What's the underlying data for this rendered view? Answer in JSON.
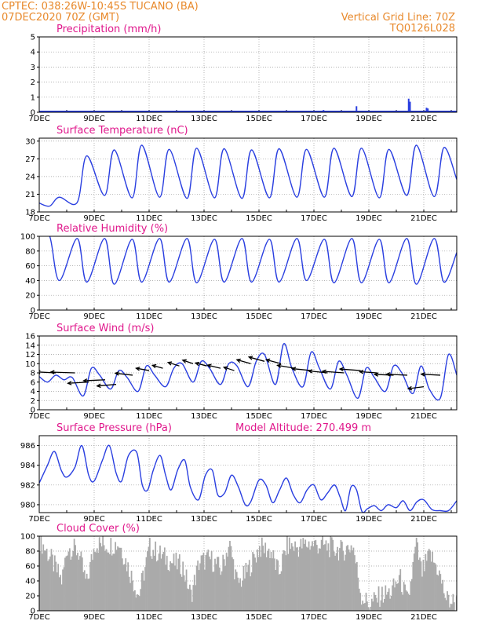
{
  "header": {
    "line1": "CPTEC:   038:26W-10:45S   TUCANO (BA)",
    "line2": "07DEC2020  70Z (GMT)",
    "right1": "Vertical Grid Line: 70Z",
    "right2": "TQ0126L028"
  },
  "colors": {
    "header": "#e8892b",
    "title": "#e0188c",
    "line": "#2a3fe0",
    "cloud": "#aaaaaa",
    "wind": "#000000"
  },
  "chart_data": [
    {
      "type": "bar",
      "title": "Precipitation (mm/h)",
      "ylim": [
        0,
        5
      ],
      "yticks": [
        "0",
        "1",
        "2",
        "3",
        "4",
        "5"
      ],
      "xticks": [
        "7DEC",
        "9DEC",
        "11DEC",
        "13DEC",
        "15DEC",
        "17DEC",
        "19DEC",
        "21DEC"
      ],
      "x_start_day": 7,
      "x_end_day": 22.2,
      "bars": [
        {
          "day": 17.35,
          "value": 0.15
        },
        {
          "day": 18.55,
          "value": 0.4
        },
        {
          "day": 20.45,
          "value": 0.9
        },
        {
          "day": 20.5,
          "value": 0.7
        },
        {
          "day": 21.1,
          "value": 0.3
        },
        {
          "day": 21.15,
          "value": 0.25
        }
      ],
      "baseline_noise": 0.05
    },
    {
      "type": "line",
      "title": "Surface Temperature (nC)",
      "ylim": [
        18,
        30.5
      ],
      "yticks": [
        "18",
        "21",
        "24",
        "27",
        "30"
      ],
      "xticks": [
        "7DEC",
        "9DEC",
        "11DEC",
        "13DEC",
        "15DEC",
        "17DEC",
        "19DEC",
        "21DEC"
      ],
      "x_start_day": 7,
      "x_end_day": 22.2,
      "daily_max": [
        20.5,
        27.5,
        28.5,
        29.3,
        28.6,
        28.8,
        28.7,
        28.5,
        28.7,
        28.6,
        28.8,
        28.8,
        28.6,
        29.3,
        28.9,
        29.0
      ],
      "daily_min": [
        19.0,
        19.6,
        20.8,
        20.4,
        20.5,
        20.3,
        20.4,
        20.3,
        20.4,
        20.5,
        20.5,
        20.6,
        20.4,
        20.8,
        20.6,
        20.5
      ],
      "max_hour": 0.73,
      "min_hour": 0.38,
      "start_value": 19.5,
      "end_value": 23.5
    },
    {
      "type": "line",
      "title": "Relative Humidity (%)",
      "ylim": [
        0,
        100
      ],
      "yticks": [
        "0",
        "20",
        "40",
        "60",
        "80",
        "100"
      ],
      "xticks": [
        "7DEC",
        "9DEC",
        "11DEC",
        "13DEC",
        "15DEC",
        "17DEC",
        "19DEC",
        "21DEC"
      ],
      "x_start_day": 7,
      "x_end_day": 22.2,
      "daily_max": [
        100,
        97,
        97,
        96,
        97,
        97,
        96,
        97,
        96,
        97,
        96,
        97,
        96,
        97,
        97,
        96
      ],
      "daily_min": [
        40,
        38,
        35,
        38,
        38,
        37,
        38,
        38,
        38,
        40,
        37,
        37,
        37,
        35,
        38,
        38
      ],
      "max_hour": 0.38,
      "min_hour": 0.73,
      "start_value": 100,
      "end_value": 78
    },
    {
      "type": "line",
      "title": "Surface Wind (m/s)",
      "ylim": [
        0,
        16
      ],
      "yticks": [
        "0",
        "2",
        "4",
        "6",
        "8",
        "10",
        "12",
        "14",
        "16"
      ],
      "xticks": [
        "7DEC",
        "9DEC",
        "11DEC",
        "13DEC",
        "15DEC",
        "17DEC",
        "19DEC",
        "21DEC"
      ],
      "x_start_day": 7,
      "x_end_day": 22.2,
      "speed": [
        {
          "day": 7.0,
          "v": 7.2
        },
        {
          "day": 7.3,
          "v": 6.0
        },
        {
          "day": 7.6,
          "v": 7.5
        },
        {
          "day": 7.9,
          "v": 6.5
        },
        {
          "day": 8.2,
          "v": 7.0
        },
        {
          "day": 8.6,
          "v": 3.0
        },
        {
          "day": 8.9,
          "v": 9.0
        },
        {
          "day": 9.2,
          "v": 7.5
        },
        {
          "day": 9.6,
          "v": 4.5
        },
        {
          "day": 9.9,
          "v": 8.5
        },
        {
          "day": 10.2,
          "v": 7.0
        },
        {
          "day": 10.6,
          "v": 4.0
        },
        {
          "day": 10.9,
          "v": 9.5
        },
        {
          "day": 11.2,
          "v": 7.5
        },
        {
          "day": 11.6,
          "v": 5.0
        },
        {
          "day": 11.9,
          "v": 9.0
        },
        {
          "day": 12.2,
          "v": 10.0
        },
        {
          "day": 12.6,
          "v": 6.0
        },
        {
          "day": 12.9,
          "v": 10.5
        },
        {
          "day": 13.2,
          "v": 9.0
        },
        {
          "day": 13.6,
          "v": 5.5
        },
        {
          "day": 13.9,
          "v": 10.0
        },
        {
          "day": 14.2,
          "v": 9.5
        },
        {
          "day": 14.6,
          "v": 5.0
        },
        {
          "day": 14.9,
          "v": 10.5
        },
        {
          "day": 15.2,
          "v": 12.0
        },
        {
          "day": 15.6,
          "v": 5.5
        },
        {
          "day": 15.9,
          "v": 14.3
        },
        {
          "day": 16.2,
          "v": 9.0
        },
        {
          "day": 16.6,
          "v": 5.0
        },
        {
          "day": 16.9,
          "v": 12.5
        },
        {
          "day": 17.2,
          "v": 9.0
        },
        {
          "day": 17.6,
          "v": 4.5
        },
        {
          "day": 17.9,
          "v": 10.5
        },
        {
          "day": 18.2,
          "v": 7.5
        },
        {
          "day": 18.6,
          "v": 2.5
        },
        {
          "day": 18.9,
          "v": 9.0
        },
        {
          "day": 19.2,
          "v": 7.0
        },
        {
          "day": 19.6,
          "v": 4.0
        },
        {
          "day": 19.9,
          "v": 9.5
        },
        {
          "day": 20.2,
          "v": 8.0
        },
        {
          "day": 20.6,
          "v": 3.5
        },
        {
          "day": 20.9,
          "v": 9.5
        },
        {
          "day": 21.2,
          "v": 4.5
        },
        {
          "day": 21.6,
          "v": 2.5
        },
        {
          "day": 21.9,
          "v": 12.0
        },
        {
          "day": 22.2,
          "v": 7.5
        }
      ],
      "vectors": [
        {
          "day": 7.0,
          "v": 8.5,
          "dx": -2.8,
          "dy": 0.6
        },
        {
          "day": 7.6,
          "v": 8.0,
          "dx": -2.2,
          "dy": 0.5
        },
        {
          "day": 8.3,
          "v": 8.0,
          "dx": -2.8,
          "dy": 0.4
        },
        {
          "day": 8.8,
          "v": 6.0,
          "dx": -2.4,
          "dy": -0.6
        },
        {
          "day": 9.4,
          "v": 6.5,
          "dx": -2.5,
          "dy": -0.5
        },
        {
          "day": 9.8,
          "v": 5.5,
          "dx": -2.2,
          "dy": -0.8
        },
        {
          "day": 10.4,
          "v": 7.5,
          "dx": -2.0,
          "dy": 1.0
        },
        {
          "day": 11.0,
          "v": 8.5,
          "dx": -1.5,
          "dy": 1.2
        },
        {
          "day": 11.5,
          "v": 9.0,
          "dx": -1.2,
          "dy": 1.5
        },
        {
          "day": 12.1,
          "v": 9.5,
          "dx": -1.3,
          "dy": 1.8
        },
        {
          "day": 12.6,
          "v": 10.0,
          "dx": -1.2,
          "dy": 1.8
        },
        {
          "day": 13.1,
          "v": 9.5,
          "dx": -1.3,
          "dy": 1.5
        },
        {
          "day": 13.6,
          "v": 9.0,
          "dx": -1.5,
          "dy": 1.6
        },
        {
          "day": 14.1,
          "v": 8.5,
          "dx": -1.2,
          "dy": 1.7
        },
        {
          "day": 14.7,
          "v": 10.0,
          "dx": -1.6,
          "dy": 2.0
        },
        {
          "day": 15.2,
          "v": 10.5,
          "dx": -1.8,
          "dy": 2.2
        },
        {
          "day": 15.8,
          "v": 10.0,
          "dx": -1.7,
          "dy": 2.0
        },
        {
          "day": 16.3,
          "v": 9.0,
          "dx": -2.0,
          "dy": 1.5
        },
        {
          "day": 16.9,
          "v": 8.5,
          "dx": -2.2,
          "dy": 1.0
        },
        {
          "day": 17.5,
          "v": 8.0,
          "dx": -2.2,
          "dy": 1.0
        },
        {
          "day": 18.1,
          "v": 8.0,
          "dx": -2.5,
          "dy": 0.8
        },
        {
          "day": 18.7,
          "v": 8.5,
          "dx": -2.4,
          "dy": 0.8
        },
        {
          "day": 19.3,
          "v": 8.0,
          "dx": -2.0,
          "dy": 0.6
        },
        {
          "day": 19.9,
          "v": 7.5,
          "dx": -2.2,
          "dy": 0.4
        },
        {
          "day": 20.4,
          "v": 7.5,
          "dx": -2.4,
          "dy": 0.5
        },
        {
          "day": 21.0,
          "v": 5.0,
          "dx": -1.8,
          "dy": -1.0
        },
        {
          "day": 21.6,
          "v": 7.5,
          "dx": -2.2,
          "dy": 0.5
        }
      ]
    },
    {
      "type": "line",
      "title": "Surface Pressure (hPa)",
      "annotation": "Model Altitude: 270.499 m",
      "ylim": [
        979.2,
        987
      ],
      "yticks": [
        "980",
        "982",
        "984",
        "986"
      ],
      "xticks": [
        "7DEC",
        "9DEC",
        "11DEC",
        "13DEC",
        "15DEC",
        "17DEC",
        "19DEC",
        "21DEC"
      ],
      "x_start_day": 7,
      "x_end_day": 22.2,
      "points": [
        {
          "day": 7.0,
          "v": 982.2
        },
        {
          "day": 7.3,
          "v": 984.0
        },
        {
          "day": 7.55,
          "v": 985.4
        },
        {
          "day": 7.8,
          "v": 983.5
        },
        {
          "day": 8.0,
          "v": 982.8
        },
        {
          "day": 8.3,
          "v": 983.8
        },
        {
          "day": 8.55,
          "v": 986.0
        },
        {
          "day": 8.8,
          "v": 983.0
        },
        {
          "day": 9.0,
          "v": 982.4
        },
        {
          "day": 9.3,
          "v": 984.5
        },
        {
          "day": 9.55,
          "v": 986.0
        },
        {
          "day": 9.8,
          "v": 983.2
        },
        {
          "day": 10.0,
          "v": 982.4
        },
        {
          "day": 10.25,
          "v": 985.0
        },
        {
          "day": 10.55,
          "v": 985.3
        },
        {
          "day": 10.75,
          "v": 982.0
        },
        {
          "day": 10.95,
          "v": 981.5
        },
        {
          "day": 11.15,
          "v": 983.5
        },
        {
          "day": 11.4,
          "v": 985.0
        },
        {
          "day": 11.6,
          "v": 983.0
        },
        {
          "day": 11.8,
          "v": 981.5
        },
        {
          "day": 12.05,
          "v": 983.6
        },
        {
          "day": 12.3,
          "v": 984.5
        },
        {
          "day": 12.5,
          "v": 981.8
        },
        {
          "day": 12.8,
          "v": 980.5
        },
        {
          "day": 13.05,
          "v": 983.0
        },
        {
          "day": 13.3,
          "v": 983.5
        },
        {
          "day": 13.5,
          "v": 981.0
        },
        {
          "day": 13.75,
          "v": 981.2
        },
        {
          "day": 14.0,
          "v": 983.0
        },
        {
          "day": 14.25,
          "v": 981.8
        },
        {
          "day": 14.5,
          "v": 980.0
        },
        {
          "day": 14.7,
          "v": 980.3
        },
        {
          "day": 15.0,
          "v": 982.5
        },
        {
          "day": 15.25,
          "v": 982.0
        },
        {
          "day": 15.5,
          "v": 980.2
        },
        {
          "day": 15.75,
          "v": 981.5
        },
        {
          "day": 16.0,
          "v": 982.7
        },
        {
          "day": 16.25,
          "v": 981.0
        },
        {
          "day": 16.5,
          "v": 980.2
        },
        {
          "day": 16.75,
          "v": 981.5
        },
        {
          "day": 17.0,
          "v": 982.0
        },
        {
          "day": 17.25,
          "v": 980.5
        },
        {
          "day": 17.5,
          "v": 981.2
        },
        {
          "day": 17.75,
          "v": 982.0
        },
        {
          "day": 17.95,
          "v": 980.8
        },
        {
          "day": 18.15,
          "v": 979.4
        },
        {
          "day": 18.35,
          "v": 981.8
        },
        {
          "day": 18.55,
          "v": 981.5
        },
        {
          "day": 18.75,
          "v": 979.3
        },
        {
          "day": 18.95,
          "v": 979.6
        },
        {
          "day": 19.2,
          "v": 979.9
        },
        {
          "day": 19.45,
          "v": 979.4
        },
        {
          "day": 19.7,
          "v": 980.0
        },
        {
          "day": 20.0,
          "v": 979.7
        },
        {
          "day": 20.25,
          "v": 980.4
        },
        {
          "day": 20.5,
          "v": 979.4
        },
        {
          "day": 20.75,
          "v": 980.3
        },
        {
          "day": 21.0,
          "v": 980.5
        },
        {
          "day": 21.3,
          "v": 979.5
        },
        {
          "day": 21.6,
          "v": 979.4
        },
        {
          "day": 21.9,
          "v": 979.4
        },
        {
          "day": 22.2,
          "v": 980.4
        }
      ]
    },
    {
      "type": "area",
      "title": "Cloud Cover (%)",
      "ylim": [
        0,
        100
      ],
      "yticks": [
        "0",
        "20",
        "40",
        "60",
        "80",
        "100"
      ],
      "xticks": [
        "7DEC",
        "9DEC",
        "11DEC",
        "13DEC",
        "15DEC",
        "17DEC",
        "19DEC",
        "21DEC"
      ],
      "x_start_day": 7,
      "x_end_day": 22.2,
      "profile": [
        {
          "day": 7.0,
          "v": 95
        },
        {
          "day": 7.4,
          "v": 70
        },
        {
          "day": 7.8,
          "v": 40
        },
        {
          "day": 8.0,
          "v": 85
        },
        {
          "day": 8.4,
          "v": 80
        },
        {
          "day": 8.7,
          "v": 35
        },
        {
          "day": 9.0,
          "v": 90
        },
        {
          "day": 9.5,
          "v": 88
        },
        {
          "day": 9.9,
          "v": 90
        },
        {
          "day": 10.2,
          "v": 60
        },
        {
          "day": 10.6,
          "v": 20
        },
        {
          "day": 11.0,
          "v": 85
        },
        {
          "day": 11.4,
          "v": 75
        },
        {
          "day": 11.8,
          "v": 65
        },
        {
          "day": 12.2,
          "v": 60
        },
        {
          "day": 12.5,
          "v": 20
        },
        {
          "day": 12.8,
          "v": 65
        },
        {
          "day": 13.2,
          "v": 70
        },
        {
          "day": 13.6,
          "v": 55
        },
        {
          "day": 13.9,
          "v": 90
        },
        {
          "day": 14.2,
          "v": 35
        },
        {
          "day": 14.5,
          "v": 50
        },
        {
          "day": 14.8,
          "v": 70
        },
        {
          "day": 15.0,
          "v": 85
        },
        {
          "day": 15.4,
          "v": 80
        },
        {
          "day": 15.7,
          "v": 50
        },
        {
          "day": 16.0,
          "v": 88
        },
        {
          "day": 16.4,
          "v": 85
        },
        {
          "day": 16.8,
          "v": 90
        },
        {
          "day": 17.2,
          "v": 88
        },
        {
          "day": 17.6,
          "v": 85
        },
        {
          "day": 18.0,
          "v": 80
        },
        {
          "day": 18.4,
          "v": 88
        },
        {
          "day": 18.7,
          "v": 20
        },
        {
          "day": 19.0,
          "v": 8
        },
        {
          "day": 19.4,
          "v": 20
        },
        {
          "day": 19.8,
          "v": 25
        },
        {
          "day": 20.1,
          "v": 45
        },
        {
          "day": 20.4,
          "v": 10
        },
        {
          "day": 20.7,
          "v": 90
        },
        {
          "day": 20.9,
          "v": 50
        },
        {
          "day": 21.2,
          "v": 75
        },
        {
          "day": 21.5,
          "v": 55
        },
        {
          "day": 21.8,
          "v": 15
        },
        {
          "day": 22.2,
          "v": 10
        }
      ]
    }
  ]
}
